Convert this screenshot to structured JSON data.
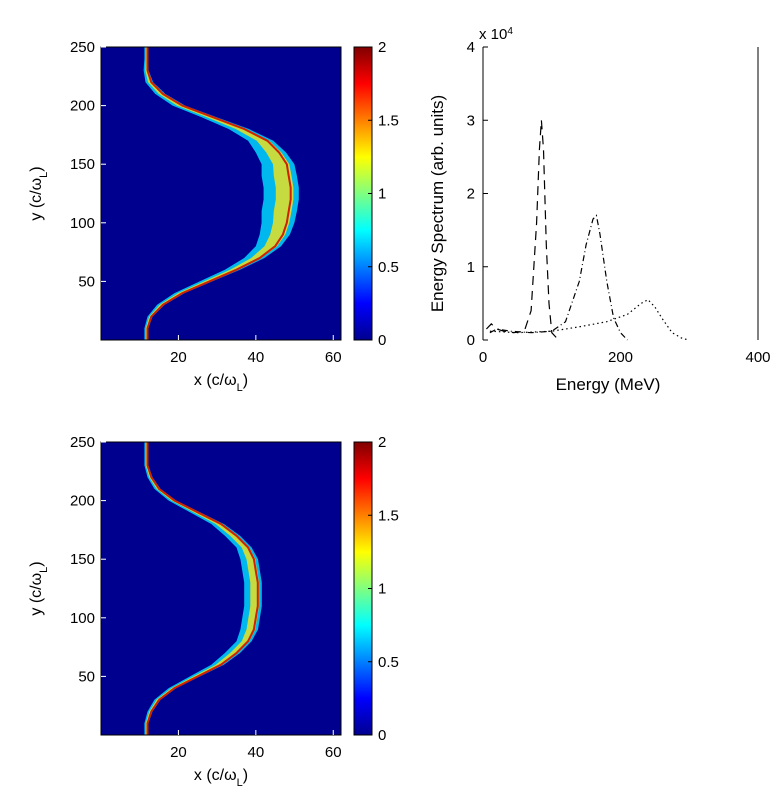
{
  "chart_data": [
    {
      "type": "heatmap",
      "title": "",
      "xlabel": "x (c/ω_L)",
      "ylabel": "y (c/ω_L)",
      "xlim": [
        0,
        62
      ],
      "ylim": [
        0,
        250
      ],
      "xticks": [
        "20",
        "40",
        "60"
      ],
      "yticks": [
        "50",
        "100",
        "150",
        "200",
        "250"
      ],
      "colorbar": {
        "min": 0,
        "max": 2,
        "ticks": [
          "0",
          "0.5",
          "1",
          "1.5",
          "2"
        ],
        "colormap": "jet"
      },
      "background_color": "#00008f",
      "front": {
        "description_values": "x position of density front vs y",
        "y": [
          0,
          10,
          20,
          30,
          40,
          50,
          60,
          70,
          80,
          90,
          100,
          110,
          120,
          130,
          140,
          150,
          160,
          170,
          180,
          190,
          200,
          210,
          220,
          230,
          240,
          250
        ],
        "x": [
          12,
          12,
          13,
          16,
          21,
          28,
          35,
          41,
          45,
          47,
          48,
          48.5,
          49,
          49,
          48.5,
          48,
          46,
          43,
          37,
          29,
          21,
          16,
          13,
          12,
          12,
          12
        ],
        "band_width": [
          0.8,
          0.8,
          1,
          1.5,
          2,
          2.5,
          3,
          4,
          5,
          6,
          6.5,
          7,
          7,
          7,
          7,
          6.5,
          6,
          5,
          4,
          3,
          2.5,
          2,
          1.5,
          1,
          0.8,
          0.8
        ]
      }
    },
    {
      "type": "line",
      "title": "",
      "xlabel": "Energy (MeV)",
      "ylabel": "Energy Spectrum (arb. units)",
      "exponent_label": "x 10^4",
      "xlim": [
        0,
        400
      ],
      "ylim": [
        0,
        4
      ],
      "xticks": [
        "0",
        "200",
        "400"
      ],
      "yticks": [
        "0",
        "1",
        "2",
        "3",
        "4"
      ],
      "series": [
        {
          "style": "dashed",
          "x": [
            5,
            12,
            20,
            30,
            45,
            60,
            70,
            78,
            82,
            85,
            88,
            92,
            96,
            100,
            110
          ],
          "y": [
            0.15,
            0.22,
            0.15,
            0.12,
            0.1,
            0.12,
            0.4,
            1.6,
            2.6,
            3.0,
            2.6,
            1.3,
            0.5,
            0.1,
            0.0
          ]
        },
        {
          "style": "dashdot",
          "x": [
            10,
            20,
            40,
            70,
            100,
            120,
            140,
            150,
            160,
            165,
            170,
            180,
            190,
            200,
            210
          ],
          "y": [
            0.1,
            0.15,
            0.12,
            0.1,
            0.12,
            0.25,
            0.8,
            1.3,
            1.65,
            1.7,
            1.45,
            0.8,
            0.3,
            0.1,
            0.0
          ]
        },
        {
          "style": "dotted",
          "x": [
            10,
            50,
            100,
            140,
            180,
            210,
            230,
            240,
            250,
            260,
            275,
            290,
            300
          ],
          "y": [
            0.12,
            0.1,
            0.12,
            0.18,
            0.25,
            0.35,
            0.5,
            0.55,
            0.45,
            0.3,
            0.1,
            0.02,
            0.0
          ]
        }
      ]
    },
    {
      "type": "heatmap",
      "title": "",
      "xlabel": "x (c/ω_L)",
      "ylabel": "y (c/ω_L)",
      "xlim": [
        0,
        62
      ],
      "ylim": [
        0,
        250
      ],
      "xticks": [
        "20",
        "40",
        "60"
      ],
      "yticks": [
        "50",
        "100",
        "150",
        "200",
        "250"
      ],
      "colorbar": {
        "min": 0,
        "max": 2,
        "ticks": [
          "0",
          "0.5",
          "1",
          "1.5",
          "2"
        ],
        "colormap": "jet"
      },
      "background_color": "#00008f",
      "front": {
        "description_values": "x position of density front vs y",
        "y": [
          0,
          10,
          20,
          30,
          40,
          50,
          60,
          70,
          80,
          90,
          100,
          110,
          120,
          130,
          140,
          150,
          160,
          170,
          180,
          190,
          200,
          210,
          220,
          230,
          240,
          250
        ],
        "x": [
          12,
          12,
          13,
          15,
          19,
          25,
          31,
          35,
          38,
          39.5,
          40,
          40.5,
          40.5,
          40.5,
          40,
          39.5,
          38,
          35,
          31,
          25,
          19,
          15,
          13,
          12,
          12,
          12
        ],
        "band_width": [
          0.8,
          0.8,
          1,
          1.2,
          1.5,
          2,
          2.5,
          3,
          3,
          3.5,
          3.5,
          3.5,
          3.5,
          3.5,
          3.5,
          3.5,
          3,
          3,
          2.5,
          2,
          1.5,
          1.2,
          1,
          0.8,
          0.8,
          0.8
        ]
      }
    }
  ]
}
